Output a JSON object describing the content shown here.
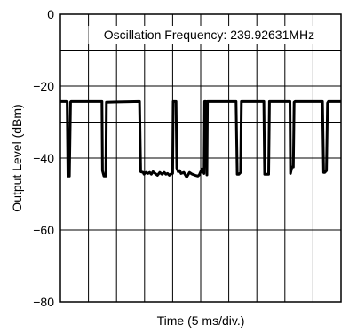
{
  "chart_data": {
    "type": "line",
    "xlabel": "Time (5 ms/div.)",
    "ylabel": "Output Level (dBm)",
    "annotation": "Oscillation Frequency: 239.92631MHz",
    "xlim": [
      0,
      10
    ],
    "ylim": [
      -80,
      0
    ],
    "y_ticks": [
      {
        "value": 0,
        "label": "0"
      },
      {
        "value": -20,
        "label": "−20"
      },
      {
        "value": -40,
        "label": "−40"
      },
      {
        "value": -60,
        "label": "−60"
      },
      {
        "value": -80,
        "label": "−80"
      }
    ],
    "x_divisions": 10,
    "y_gridlines": [
      0,
      -10,
      -20,
      -30,
      -40,
      -50,
      -60,
      -70,
      -80
    ],
    "grid": true,
    "series": [
      {
        "x": [
          0.0,
          0.24,
          0.27,
          0.32,
          0.36,
          0.38,
          1.48,
          1.5,
          1.55,
          1.62,
          1.64,
          2.82,
          2.86,
          2.95,
          2.98,
          3.05,
          3.12,
          3.18,
          3.24,
          3.3,
          3.38,
          3.46,
          3.54,
          3.62,
          3.7,
          3.76,
          3.82,
          3.88,
          3.93,
          4.0,
          4.02,
          4.12,
          4.15,
          4.2,
          4.25,
          4.3,
          4.4,
          4.5,
          4.6,
          4.7,
          4.8,
          4.9,
          4.95,
          5.0,
          5.05,
          5.12,
          5.14,
          5.18,
          5.22,
          5.24,
          6.26,
          6.3,
          6.36,
          6.42,
          6.45,
          7.25,
          7.28,
          7.34,
          7.42,
          7.45,
          8.18,
          8.2,
          8.25,
          8.3,
          8.33,
          8.36,
          9.34,
          9.38,
          9.42,
          9.48,
          9.52,
          9.55,
          10.0
        ],
        "y": [
          -24.3,
          -24.3,
          -45,
          -45,
          -24.5,
          -24.3,
          -24.3,
          -43.5,
          -45,
          -45,
          -24.5,
          -24.3,
          -43.8,
          -44,
          -44.5,
          -44,
          -44.3,
          -44,
          -44.5,
          -43.8,
          -44.3,
          -44.8,
          -44,
          -44.5,
          -44,
          -44.5,
          -44.3,
          -44.8,
          -44.5,
          -44.3,
          -24.3,
          -24.3,
          -42.8,
          -43.8,
          -43.5,
          -44.3,
          -44,
          -45.3,
          -44,
          -44.5,
          -44.8,
          -45,
          -44.7,
          -43.8,
          -43,
          -44.3,
          -24.3,
          -24.3,
          -44.7,
          -24.3,
          -24.3,
          -44.5,
          -44.5,
          -44,
          -24.3,
          -24.3,
          -44.5,
          -44.5,
          -44.5,
          -24.3,
          -24.3,
          -44.3,
          -42.5,
          -42.5,
          -24.5,
          -24.3,
          -24.3,
          -44,
          -44,
          -43.5,
          -24.7,
          -24.3,
          -24.3
        ]
      }
    ]
  }
}
